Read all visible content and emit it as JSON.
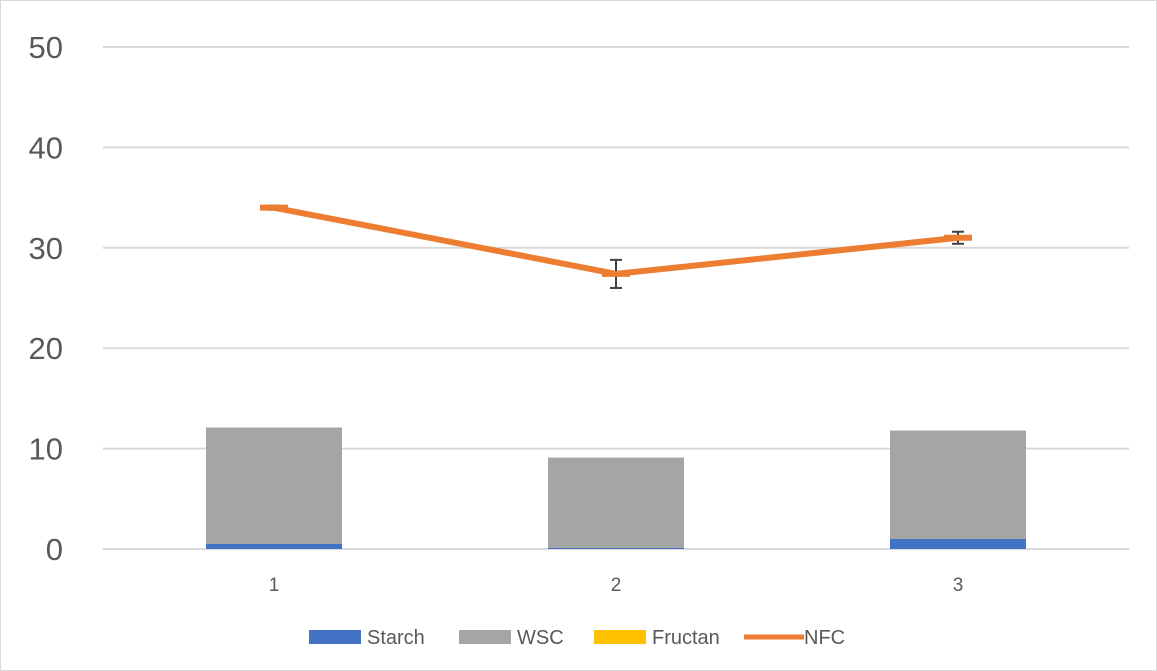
{
  "chart_data": {
    "type": "bar",
    "stacked": true,
    "categories": [
      "1",
      "2",
      "3"
    ],
    "ylim": [
      0,
      50
    ],
    "y_ticks": [
      "0",
      "10",
      "20",
      "30",
      "40",
      "50"
    ],
    "grid": true,
    "legend_position": "bottom",
    "series": [
      {
        "name": "Starch",
        "kind": "bar",
        "color": "#4472c4",
        "values": [
          0.5,
          0.1,
          1.0
        ]
      },
      {
        "name": "WSC",
        "kind": "bar",
        "color": "#a5a5a5",
        "values": [
          11.6,
          9.0,
          10.8
        ]
      },
      {
        "name": "Fructan",
        "kind": "bar",
        "color": "#ffc000",
        "values": [
          0,
          0,
          0
        ]
      },
      {
        "name": "NFC",
        "kind": "line",
        "color": "#ed7d31",
        "values": [
          34.0,
          27.4,
          31.0
        ],
        "error": [
          0.2,
          1.4,
          0.6
        ]
      }
    ],
    "title": "",
    "xlabel": "",
    "ylabel": ""
  }
}
